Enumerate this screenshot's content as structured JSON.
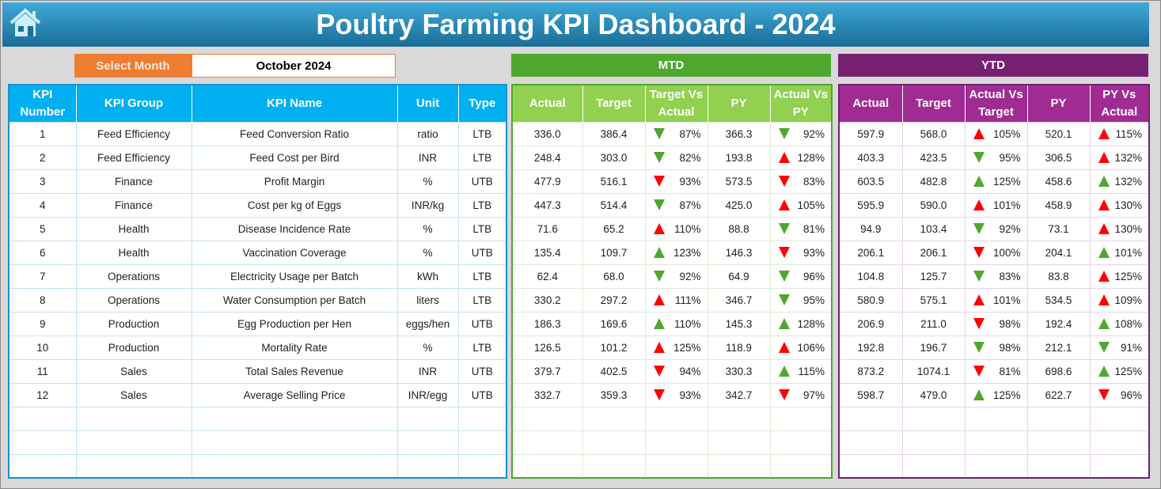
{
  "header": {
    "title": "Poultry Farming KPI Dashboard - 2024"
  },
  "month": {
    "label": "Select Month",
    "value": "October 2024"
  },
  "bands": {
    "mtd": "MTD",
    "ytd": "YTD"
  },
  "colors": {
    "blue": "#00b0f0",
    "green": "#92d050",
    "purple": "#a02b93",
    "orange": "#ed7d31",
    "bad": "#ff0000",
    "good": "#4ea72e"
  },
  "kpi_headers": [
    "KPI Number",
    "KPI Group",
    "KPI Name",
    "Unit",
    "Type"
  ],
  "mtd_headers": [
    "Actual",
    "Target",
    "Target Vs Actual",
    "PY",
    "Actual Vs PY"
  ],
  "ytd_headers": [
    "Actual",
    "Target",
    "Actual Vs Target",
    "PY",
    "PY Vs Actual"
  ],
  "rows": [
    {
      "n": "1",
      "group": "Feed Efficiency",
      "name": "Feed Conversion Ratio",
      "unit": "ratio",
      "type": "LTB",
      "mtd": [
        "336.0",
        "386.4",
        [
          "down-green",
          "87%"
        ],
        "366.3",
        [
          "down-green",
          "92%"
        ]
      ],
      "ytd": [
        "597.9",
        "568.0",
        [
          "up-red",
          "105%"
        ],
        "520.1",
        [
          "up-red",
          "115%"
        ]
      ]
    },
    {
      "n": "2",
      "group": "Feed Efficiency",
      "name": "Feed Cost per Bird",
      "unit": "INR",
      "type": "LTB",
      "mtd": [
        "248.4",
        "303.0",
        [
          "down-green",
          "82%"
        ],
        "193.8",
        [
          "up-red",
          "128%"
        ]
      ],
      "ytd": [
        "403.3",
        "423.5",
        [
          "down-green",
          "95%"
        ],
        "306.5",
        [
          "up-red",
          "132%"
        ]
      ]
    },
    {
      "n": "3",
      "group": "Finance",
      "name": "Profit Margin",
      "unit": "%",
      "type": "UTB",
      "mtd": [
        "477.9",
        "516.1",
        [
          "down-red",
          "93%"
        ],
        "573.5",
        [
          "down-red",
          "83%"
        ]
      ],
      "ytd": [
        "603.5",
        "482.8",
        [
          "up-green",
          "125%"
        ],
        "458.6",
        [
          "up-green",
          "132%"
        ]
      ]
    },
    {
      "n": "4",
      "group": "Finance",
      "name": "Cost per kg of Eggs",
      "unit": "INR/kg",
      "type": "LTB",
      "mtd": [
        "447.3",
        "514.4",
        [
          "down-green",
          "87%"
        ],
        "425.0",
        [
          "up-red",
          "105%"
        ]
      ],
      "ytd": [
        "595.9",
        "590.0",
        [
          "up-red",
          "101%"
        ],
        "458.9",
        [
          "up-red",
          "130%"
        ]
      ]
    },
    {
      "n": "5",
      "group": "Health",
      "name": "Disease Incidence Rate",
      "unit": "%",
      "type": "LTB",
      "mtd": [
        "71.6",
        "65.2",
        [
          "up-red",
          "110%"
        ],
        "88.8",
        [
          "down-green",
          "81%"
        ]
      ],
      "ytd": [
        "94.9",
        "103.4",
        [
          "down-green",
          "92%"
        ],
        "73.1",
        [
          "up-red",
          "130%"
        ]
      ]
    },
    {
      "n": "6",
      "group": "Health",
      "name": "Vaccination Coverage",
      "unit": "%",
      "type": "UTB",
      "mtd": [
        "135.4",
        "109.7",
        [
          "up-green",
          "123%"
        ],
        "146.3",
        [
          "down-red",
          "93%"
        ]
      ],
      "ytd": [
        "206.1",
        "206.1",
        [
          "down-red",
          "100%"
        ],
        "204.1",
        [
          "up-green",
          "101%"
        ]
      ]
    },
    {
      "n": "7",
      "group": "Operations",
      "name": "Electricity Usage per Batch",
      "unit": "kWh",
      "type": "LTB",
      "mtd": [
        "62.4",
        "68.0",
        [
          "down-green",
          "92%"
        ],
        "64.9",
        [
          "down-green",
          "96%"
        ]
      ],
      "ytd": [
        "104.8",
        "125.7",
        [
          "down-green",
          "83%"
        ],
        "83.8",
        [
          "up-red",
          "125%"
        ]
      ]
    },
    {
      "n": "8",
      "group": "Operations",
      "name": "Water Consumption per Batch",
      "unit": "liters",
      "type": "LTB",
      "mtd": [
        "330.2",
        "297.2",
        [
          "up-red",
          "111%"
        ],
        "346.7",
        [
          "down-green",
          "95%"
        ]
      ],
      "ytd": [
        "580.9",
        "575.1",
        [
          "up-red",
          "101%"
        ],
        "534.5",
        [
          "up-red",
          "109%"
        ]
      ]
    },
    {
      "n": "9",
      "group": "Production",
      "name": "Egg Production per Hen",
      "unit": "eggs/hen",
      "type": "UTB",
      "mtd": [
        "186.3",
        "169.6",
        [
          "up-green",
          "110%"
        ],
        "145.3",
        [
          "up-green",
          "128%"
        ]
      ],
      "ytd": [
        "206.9",
        "211.0",
        [
          "down-red",
          "98%"
        ],
        "192.4",
        [
          "up-green",
          "108%"
        ]
      ]
    },
    {
      "n": "10",
      "group": "Production",
      "name": "Mortality Rate",
      "unit": "%",
      "type": "LTB",
      "mtd": [
        "126.5",
        "101.2",
        [
          "up-red",
          "125%"
        ],
        "118.9",
        [
          "up-red",
          "106%"
        ]
      ],
      "ytd": [
        "192.8",
        "196.7",
        [
          "down-green",
          "98%"
        ],
        "212.1",
        [
          "down-green",
          "91%"
        ]
      ]
    },
    {
      "n": "11",
      "group": "Sales",
      "name": "Total Sales Revenue",
      "unit": "INR",
      "type": "UTB",
      "mtd": [
        "379.7",
        "402.5",
        [
          "down-red",
          "94%"
        ],
        "330.3",
        [
          "up-green",
          "115%"
        ]
      ],
      "ytd": [
        "873.2",
        "1074.1",
        [
          "down-red",
          "81%"
        ],
        "698.6",
        [
          "up-green",
          "125%"
        ]
      ]
    },
    {
      "n": "12",
      "group": "Sales",
      "name": "Average Selling Price",
      "unit": "INR/egg",
      "type": "UTB",
      "mtd": [
        "332.7",
        "359.3",
        [
          "down-red",
          "93%"
        ],
        "342.7",
        [
          "down-red",
          "97%"
        ]
      ],
      "ytd": [
        "598.7",
        "479.0",
        [
          "up-green",
          "125%"
        ],
        "622.7",
        [
          "down-red",
          "96%"
        ]
      ]
    }
  ]
}
